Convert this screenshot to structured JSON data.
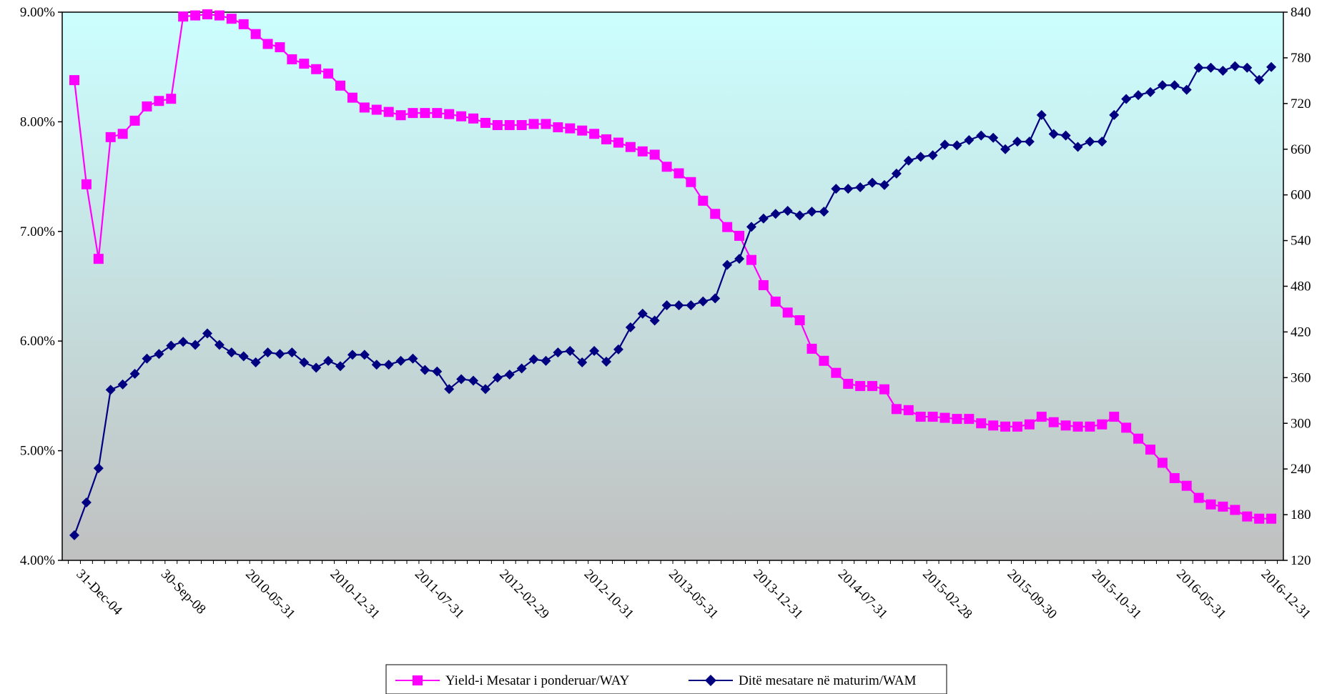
{
  "chart_data": {
    "type": "line",
    "title": "",
    "x_tick_labels": [
      "31-Dec-04",
      "30-Sep-08",
      "2010-05-31",
      "2010-12-31",
      "2011-07-31",
      "2012-02-29",
      "2012-10-31",
      "2013-05-31",
      "2013-12-31",
      "2014-07-31",
      "2015-02-28",
      "2015-09-30",
      "2015-10-31",
      "2016-05-31",
      "2016-12-31"
    ],
    "y_left": {
      "min": 4.0,
      "max": 9.0,
      "ticks": [
        "4.00%",
        "5.00%",
        "6.00%",
        "7.00%",
        "8.00%",
        "9.00%"
      ]
    },
    "y_right": {
      "min": 120,
      "max": 840,
      "ticks": [
        "120",
        "180",
        "240",
        "300",
        "360",
        "420",
        "480",
        "540",
        "600",
        "660",
        "720",
        "780",
        "840"
      ]
    },
    "series": [
      {
        "name": "Yield-i Mesatar i ponderuar/WAY",
        "axis": "left",
        "color": "#ff00ff",
        "marker": "square",
        "values": [
          8.38,
          7.43,
          6.75,
          7.86,
          7.89,
          8.01,
          8.14,
          8.19,
          8.21,
          8.96,
          8.97,
          8.98,
          8.97,
          8.94,
          8.89,
          8.8,
          8.71,
          8.68,
          8.57,
          8.53,
          8.48,
          8.44,
          8.33,
          8.22,
          8.13,
          8.11,
          8.09,
          8.06,
          8.08,
          8.08,
          8.08,
          8.07,
          8.05,
          8.03,
          7.99,
          7.97,
          7.97,
          7.97,
          7.98,
          7.98,
          7.95,
          7.94,
          7.92,
          7.89,
          7.84,
          7.81,
          7.77,
          7.73,
          7.7,
          7.59,
          7.53,
          7.45,
          7.28,
          7.16,
          7.04,
          6.96,
          6.74,
          6.51,
          6.36,
          6.26,
          6.19,
          5.93,
          5.82,
          5.71,
          5.61,
          5.59,
          5.59,
          5.56,
          5.38,
          5.37,
          5.31,
          5.31,
          5.3,
          5.29,
          5.29,
          5.25,
          5.23,
          5.22,
          5.22,
          5.24,
          5.31,
          5.26,
          5.23,
          5.22,
          5.22,
          5.24,
          5.31,
          5.21,
          5.11,
          5.01,
          4.89,
          4.75,
          4.68,
          4.57,
          4.51,
          4.49,
          4.46,
          4.4,
          4.38,
          4.38
        ]
      },
      {
        "name": "Ditë mesatare në maturim/WAM",
        "axis": "right",
        "color": "#000080",
        "marker": "diamond",
        "values": [
          153,
          196,
          241,
          344,
          351,
          365,
          385,
          391,
          402,
          407,
          403,
          418,
          403,
          393,
          388,
          380,
          393,
          391,
          393,
          380,
          373,
          382,
          375,
          390,
          390,
          377,
          377,
          382,
          385,
          370,
          368,
          345,
          358,
          356,
          345,
          360,
          364,
          372,
          384,
          382,
          393,
          395,
          380,
          395,
          381,
          397,
          426,
          444,
          435,
          455,
          455,
          455,
          460,
          464,
          508,
          516,
          558,
          569,
          575,
          579,
          573,
          578,
          578,
          608,
          608,
          610,
          616,
          613,
          628,
          645,
          650,
          652,
          666,
          665,
          672,
          678,
          675,
          660,
          670,
          670,
          705,
          680,
          678,
          663,
          670,
          670,
          705,
          726,
          731,
          735,
          744,
          744,
          738,
          767,
          767,
          763,
          769,
          767,
          751,
          768
        ]
      }
    ],
    "legend": {
      "placement": "bottom-center"
    }
  }
}
